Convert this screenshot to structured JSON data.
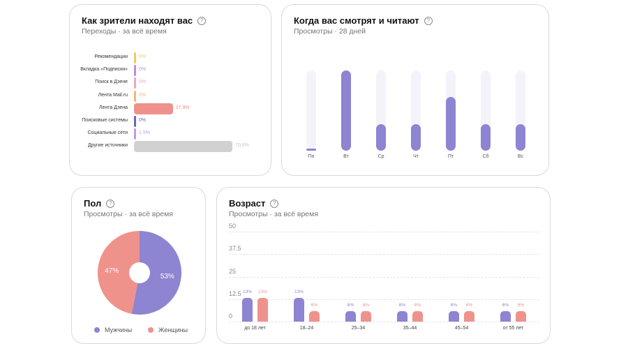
{
  "colors": {
    "purple": "#8d84d2",
    "salmon": "#ef928c",
    "yellow": "#f5c95c",
    "lilac": "#b68ee0",
    "pink": "#f0a5c0",
    "orange": "#f3b873",
    "indigo": "#6b66c4",
    "violet": "#c19be6",
    "gray": "#d1d1d1",
    "track": "#f4f3fa"
  },
  "chart_data": [
    {
      "type": "bar",
      "orientation": "horizontal",
      "title": "Как зрители находят вас",
      "subtitle": "Переходы · за всё время",
      "categories": [
        "Рекомендации",
        "Вкладка «Подписки»",
        "Поиск в Дзене",
        "Лента Mail.ru",
        "Лента Дзена",
        "Поисковые системы",
        "Социальные сети",
        "Другие источники"
      ],
      "values": [
        0,
        0,
        0,
        0,
        27.9,
        0,
        1.5,
        70.6
      ],
      "labels": [
        "0%",
        "0%",
        "0%",
        "0%",
        "27.9%",
        "0%",
        "1.5%",
        "70.6%"
      ],
      "bar_colors": [
        "#f5c95c",
        "#b68ee0",
        "#f0a5c0",
        "#f3b873",
        "#ef928c",
        "#6b66c4",
        "#c19be6",
        "#d1d1d1"
      ],
      "label_colors": [
        "#f5c95c",
        "#b68ee0",
        "#f0a5c0",
        "#f3b873",
        "#ef928c",
        "#6b66c4",
        "#c19be6",
        "#c8c8c8"
      ],
      "unit": "%",
      "xlim": [
        0,
        100
      ]
    },
    {
      "type": "bar",
      "title": "Когда вас смотрят и читают",
      "subtitle": "Просмотры · 28 дней",
      "categories": [
        "Пн",
        "Вт",
        "Ср",
        "Чт",
        "Пт",
        "Сб",
        "Вс"
      ],
      "values": [
        0.02,
        1.0,
        0.33,
        0.33,
        0.67,
        0.33,
        0.33
      ],
      "value_unit": "fraction of max",
      "color": "#8d84d2"
    },
    {
      "type": "pie",
      "title": "Пол",
      "subtitle": "Просмотры · за всё время",
      "categories": [
        "Мужчины",
        "Женщины"
      ],
      "values": [
        53,
        47
      ],
      "labels": [
        "53%",
        "47%"
      ],
      "colors": [
        "#8d84d2",
        "#ef928c"
      ],
      "donut": true,
      "legend": "bottom"
    },
    {
      "type": "bar",
      "title": "Возраст",
      "subtitle": "Просмотры · за всё время",
      "categories": [
        "до 18 лет",
        "18–24",
        "25–34",
        "35–44",
        "45–54",
        "от 55 лет"
      ],
      "series": [
        {
          "name": "Мужчины",
          "color": "#8d84d2",
          "values": [
            13,
            13,
            6,
            6,
            6,
            6
          ],
          "labels": [
            "13%",
            "13%",
            "6%",
            "6%",
            "6%",
            "6%"
          ]
        },
        {
          "name": "Женщины",
          "color": "#ef928c",
          "values": [
            13,
            6,
            6,
            6,
            6,
            6
          ],
          "labels": [
            "13%",
            "6%",
            "6%",
            "6%",
            "6%",
            "6%"
          ]
        }
      ],
      "yticks": [
        "50",
        "37.5",
        "25",
        "12.5",
        "0"
      ],
      "ytick_values": [
        50,
        37.5,
        25,
        12.5,
        0
      ],
      "ylim": [
        0,
        50
      ],
      "grid": true
    }
  ],
  "help_glyph": "?"
}
